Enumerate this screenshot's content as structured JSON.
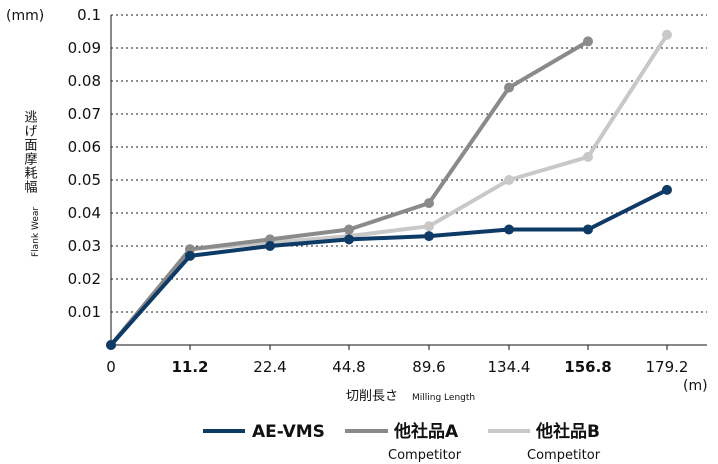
{
  "chart_data": {
    "type": "line",
    "y_unit": "(mm)",
    "x_unit": "(m)",
    "xlabel": "切削長さ",
    "xlabel_sub": "Milling Length",
    "ylabel": "逃げ面摩耗幅",
    "ylabel_sub": "Flank Wear",
    "ylim": [
      0,
      0.1
    ],
    "y_ticks": [
      "0.01",
      "0.02",
      "0.03",
      "0.04",
      "0.05",
      "0.06",
      "0.07",
      "0.08",
      "0.09",
      "0.1"
    ],
    "x": [
      "0",
      "11.2",
      "22.4",
      "44.8",
      "89.6",
      "134.4",
      "156.8",
      "179.2"
    ],
    "x_bold": [
      "11.2",
      "156.8"
    ],
    "grid": "horizontal dotted",
    "legend_position": "bottom",
    "series": [
      {
        "name": "AE-VMS",
        "sub": "",
        "color": "#0e3a66",
        "values": [
          0,
          0.027,
          0.03,
          0.032,
          0.033,
          0.035,
          0.035,
          0.047
        ]
      },
      {
        "name": "他社品A",
        "sub": "Competitor",
        "color": "#8a8a8a",
        "values": [
          0,
          0.029,
          0.032,
          0.035,
          0.043,
          0.078,
          0.092,
          null
        ]
      },
      {
        "name": "他社品B",
        "sub": "Competitor",
        "color": "#c8c8c8",
        "values": [
          0,
          0.029,
          0.031,
          0.033,
          0.036,
          0.05,
          0.057,
          0.094
        ]
      }
    ]
  }
}
